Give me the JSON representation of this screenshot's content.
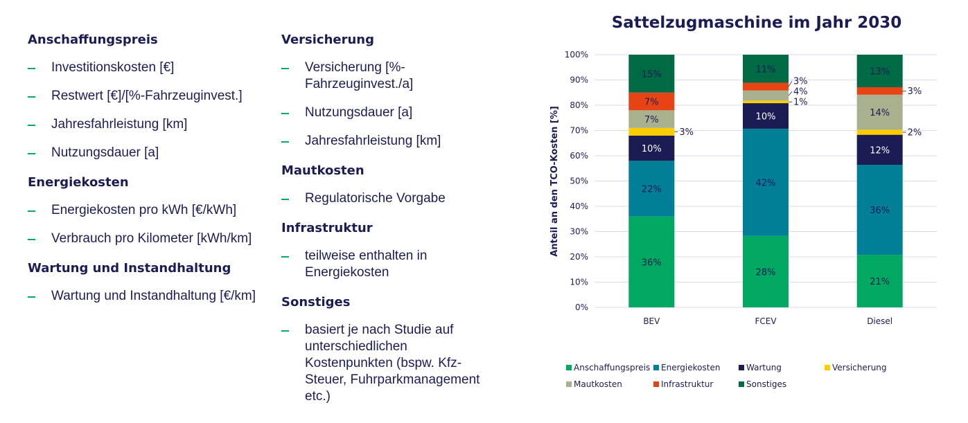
{
  "left_columns": [
    {
      "sections": [
        {
          "title": "Anschaffungspreis",
          "items": [
            "Investitionskosten [€]",
            "Restwert [€]/[%-Fahrzeuginvest.]",
            "Jahresfahrleistung [km]",
            "Nutzungsdauer [a]"
          ]
        },
        {
          "title": "Energiekosten",
          "items": [
            "Energiekosten pro kWh [€/kWh]",
            "Verbrauch pro Kilometer [kWh/km]"
          ]
        },
        {
          "title": "Wartung und Instandhaltung",
          "items": [
            "Wartung und Instandhaltung [€/km]"
          ]
        }
      ]
    },
    {
      "sections": [
        {
          "title": "Versicherung",
          "items": [
            "Versicherung [%-Fahrzeuginvest./a]",
            "Nutzungsdauer [a]",
            "Jahresfahrleistung [km]"
          ]
        },
        {
          "title": "Mautkosten",
          "items": [
            "Regulatorische Vorgabe"
          ]
        },
        {
          "title": "Infrastruktur",
          "items": [
            "teilweise enthalten in Energiekosten"
          ]
        },
        {
          "title": "Sonstiges",
          "items": [
            "basiert je nach Studie auf unterschiedlichen Kostenpunkten (bspw. Kfz-Steuer, Fuhrparkmanagement etc.)"
          ]
        }
      ]
    }
  ],
  "chart_data": {
    "type": "bar",
    "stacked": true,
    "title": "Sattelzugmaschine im Jahr 2030",
    "xlabel": "",
    "ylabel": "Anteil an den TCO-Kosten [%]",
    "ylim": [
      0,
      100
    ],
    "yticks": [
      "0%",
      "10%",
      "20%",
      "30%",
      "40%",
      "50%",
      "60%",
      "70%",
      "80%",
      "90%",
      "100%"
    ],
    "grid": true,
    "legend": "bottom",
    "categories": [
      "BEV",
      "FCEV",
      "Diesel"
    ],
    "series": [
      {
        "name": "Anschaffungspreis",
        "color": "#00a862",
        "values": [
          36,
          28,
          21
        ]
      },
      {
        "name": "Energiekosten",
        "color": "#007f96",
        "values": [
          22,
          42,
          36
        ]
      },
      {
        "name": "Wartung",
        "color": "#1c1c54",
        "values": [
          10,
          10,
          12
        ]
      },
      {
        "name": "Versicherung",
        "color": "#ffcc00",
        "values": [
          3,
          1,
          2
        ]
      },
      {
        "name": "Mautkosten",
        "color": "#a8b08e",
        "values": [
          7,
          4,
          14
        ]
      },
      {
        "name": "Infrastruktur",
        "color": "#e64415",
        "values": [
          7,
          3,
          3
        ]
      },
      {
        "name": "Sonstiges",
        "color": "#006a45",
        "values": [
          15,
          11,
          13
        ]
      }
    ]
  }
}
